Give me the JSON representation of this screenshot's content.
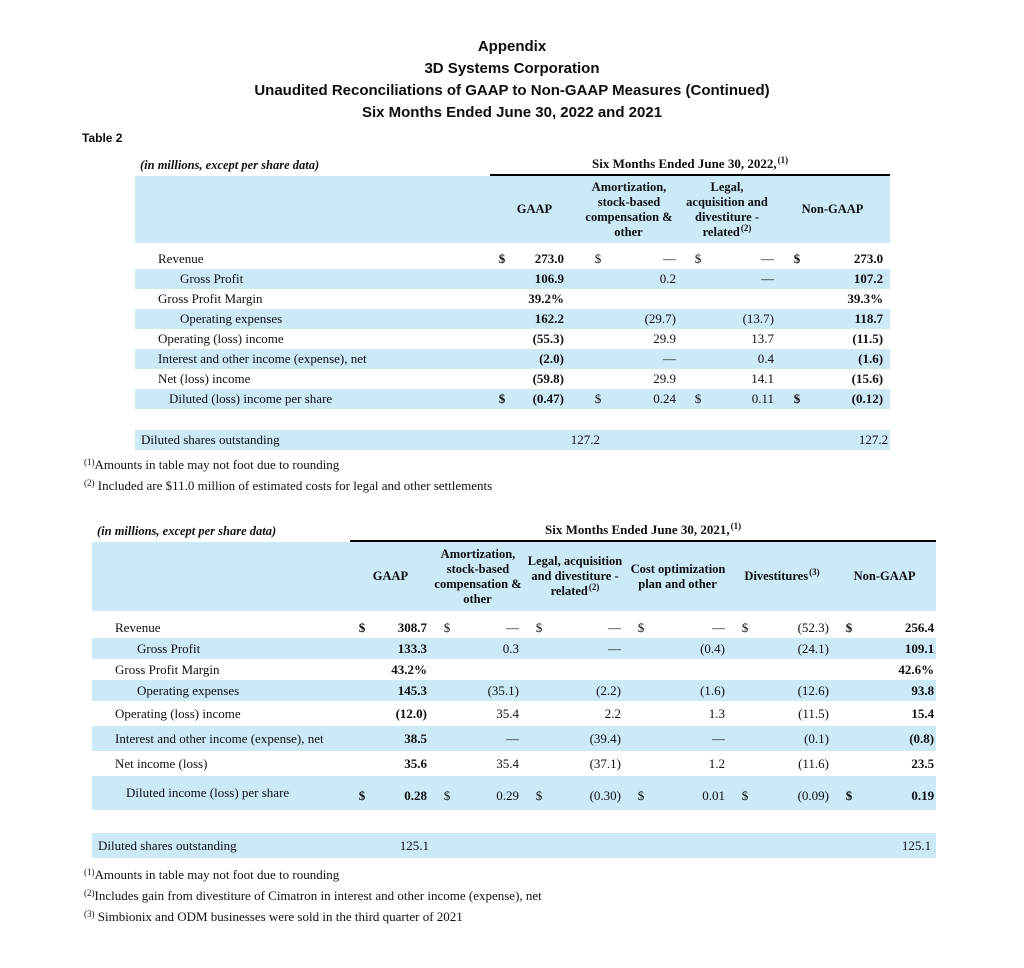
{
  "page_title": {
    "lines": [
      "Appendix",
      "3D Systems Corporation",
      "Unaudited Reconciliations of GAAP to Non-GAAP Measures (Continued)",
      "Six Months Ended June 30, 2022 and 2021"
    ]
  },
  "table_label": "Table 2",
  "currency_symbol": "$",
  "colors": {
    "row_highlight": "#cce9f7",
    "rule": "#000000",
    "text": "#101010"
  },
  "table_2022": {
    "units_note": "(in millions, except per share data)",
    "period_label": "Six Months Ended June 30, 2022,",
    "period_marker": "(1)",
    "columns": [
      {
        "label": "GAAP"
      },
      {
        "label": "Amortization, stock-based compensation & other"
      },
      {
        "label": "Legal, acquisition and divestiture - related",
        "marker": "(2)"
      },
      {
        "label": "Non-GAAP"
      }
    ],
    "rows": [
      {
        "label": "Revenue",
        "dollar": true,
        "values": [
          "273.0",
          "—",
          "—",
          "273.0"
        ]
      },
      {
        "label": "Gross Profit",
        "indent": 2,
        "values": [
          "106.9",
          "0.2",
          "—",
          "107.2"
        ]
      },
      {
        "label": "Gross Profit Margin",
        "values": [
          "39.2%",
          "",
          "",
          "39.3%"
        ]
      },
      {
        "label": "Operating expenses",
        "indent": 2,
        "values": [
          "162.2",
          "(29.7)",
          "(13.7)",
          "118.7"
        ]
      },
      {
        "label": "Operating (loss) income",
        "values": [
          "(55.3)",
          "29.9",
          "13.7",
          "(11.5)"
        ]
      },
      {
        "label": "Interest and other income (expense), net",
        "values": [
          "(2.0)",
          "—",
          "0.4",
          "(1.6)"
        ]
      },
      {
        "label": "Net (loss) income",
        "values": [
          "(59.8)",
          "29.9",
          "14.1",
          "(15.6)"
        ]
      },
      {
        "label": "Diluted (loss) income per share",
        "indent": 1,
        "dollar": true,
        "values": [
          "(0.47)",
          "0.24",
          "0.11",
          "(0.12)"
        ]
      }
    ],
    "shares_row": {
      "label": "Diluted shares outstanding",
      "first_value": "127.2",
      "last_value": "127.2"
    },
    "footnotes": [
      {
        "marker": "(1)",
        "text": "Amounts in table may not foot due to rounding"
      },
      {
        "marker": "(2)",
        "text": " Included are $11.0 million of estimated costs for legal and other settlements"
      }
    ]
  },
  "table_2021": {
    "units_note": "(in millions, except per share data)",
    "period_label": "Six Months Ended June 30, 2021,",
    "period_marker": "(1)",
    "columns": [
      {
        "label": "GAAP"
      },
      {
        "label": "Amortization, stock-based compensation & other"
      },
      {
        "label": "Legal, acquisition and divestiture - related",
        "marker": "(2)"
      },
      {
        "label": "Cost optimization plan and other"
      },
      {
        "label": "Divestitures",
        "marker": "(3)"
      },
      {
        "label": "Non-GAAP"
      }
    ],
    "rows": [
      {
        "label": "Revenue",
        "dollar": true,
        "values": [
          "308.7",
          "—",
          "—",
          "—",
          "(52.3)",
          "256.4"
        ]
      },
      {
        "label": "Gross Profit",
        "indent": 2,
        "values": [
          "133.3",
          "0.3",
          "—",
          "(0.4)",
          "(24.1)",
          "109.1"
        ]
      },
      {
        "label": "Gross Profit Margin",
        "values": [
          "43.2%",
          "",
          "",
          "",
          "",
          "42.6%"
        ]
      },
      {
        "label": "Operating expenses",
        "indent": 2,
        "values": [
          "145.3",
          "(35.1)",
          "(2.2)",
          "(1.6)",
          "(12.6)",
          "93.8"
        ]
      },
      {
        "label": "Operating (loss) income",
        "values": [
          "(12.0)",
          "35.4",
          "2.2",
          "1.3",
          "(11.5)",
          "15.4"
        ]
      },
      {
        "label": "Interest and other income (expense), net",
        "values": [
          "38.5",
          "—",
          "(39.4)",
          "—",
          "(0.1)",
          "(0.8)"
        ]
      },
      {
        "label": "Net income (loss)",
        "values": [
          "35.6",
          "35.4",
          "(37.1)",
          "1.2",
          "(11.6)",
          "23.5"
        ]
      },
      {
        "label": "Diluted income (loss) per share",
        "indent": 1,
        "dollar": true,
        "values": [
          "0.28",
          "0.29",
          "(0.30)",
          "0.01",
          "(0.09)",
          "0.19"
        ]
      }
    ],
    "shares_row": {
      "label": "Diluted shares outstanding",
      "first_value": "125.1",
      "last_value": "125.1"
    },
    "footnotes": [
      {
        "marker": "(1)",
        "text": "Amounts in table may not foot due to rounding"
      },
      {
        "marker": "(2)",
        "text": "Includes gain from divestiture of Cimatron in interest and other income (expense), net"
      },
      {
        "marker": "(3)",
        "text": " Simbionix and ODM businesses were sold in the third quarter of 2021"
      }
    ]
  }
}
